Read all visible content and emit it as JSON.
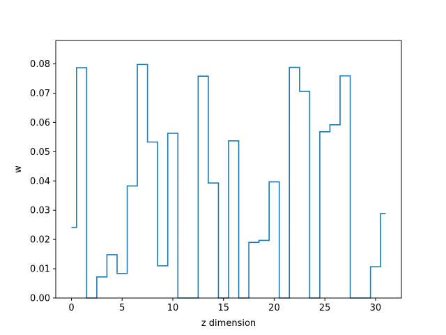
{
  "chart_data": {
    "type": "step",
    "xlabel": "z dimension",
    "ylabel": "w",
    "xlim": [
      -1.55,
      32.55
    ],
    "ylim": [
      0,
      0.088
    ],
    "xticks": [
      0,
      5,
      10,
      15,
      20,
      25,
      30
    ],
    "yticks": [
      0.0,
      0.01,
      0.02,
      0.03,
      0.04,
      0.05,
      0.06,
      0.07,
      0.08
    ],
    "xtick_labels": [
      "0",
      "5",
      "10",
      "15",
      "20",
      "25",
      "30"
    ],
    "ytick_labels": [
      "0.00",
      "0.01",
      "0.02",
      "0.03",
      "0.04",
      "0.05",
      "0.06",
      "0.07",
      "0.08"
    ],
    "grid": false,
    "step_where": "mid",
    "line_color": "#1f77b4",
    "x": [
      0,
      1,
      2,
      3,
      4,
      5,
      6,
      7,
      8,
      9,
      10,
      11,
      12,
      13,
      14,
      15,
      16,
      17,
      18,
      19,
      20,
      21,
      22,
      23,
      24,
      25,
      26,
      27,
      28,
      29,
      30,
      31
    ],
    "y": [
      0.0241,
      0.0787,
      0.0,
      0.0072,
      0.0148,
      0.0084,
      0.0383,
      0.0798,
      0.0533,
      0.011,
      0.0563,
      0.0,
      0.0,
      0.0758,
      0.0393,
      0.0,
      0.0537,
      0.0,
      0.019,
      0.0197,
      0.0397,
      0.0,
      0.0788,
      0.0706,
      0.0,
      0.0568,
      0.0592,
      0.0759,
      0.0,
      0.0,
      0.0107,
      0.0289
    ]
  }
}
